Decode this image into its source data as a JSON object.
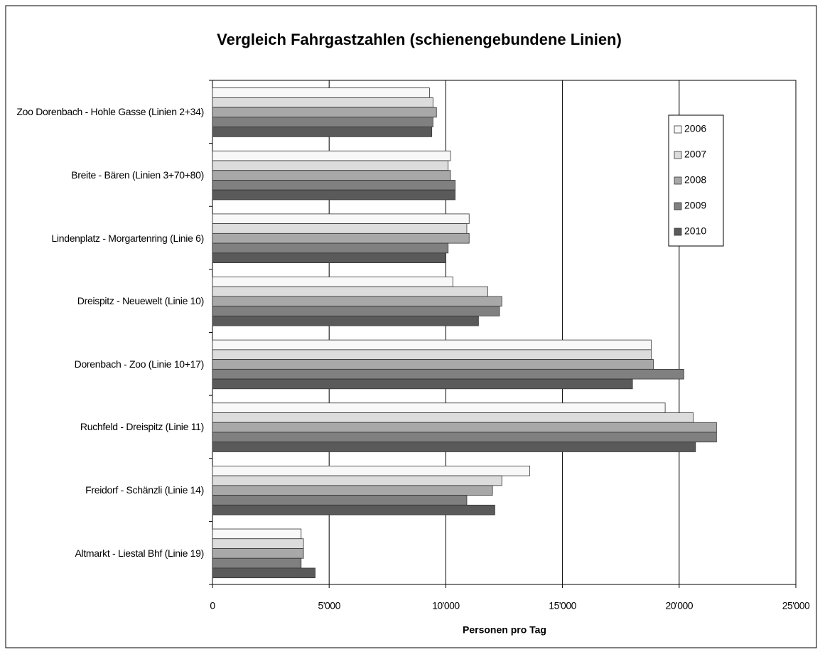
{
  "chart_data": {
    "type": "bar",
    "orientation": "horizontal",
    "title": "Vergleich Fahrgastzahlen (schienengebundene Linien)",
    "xlabel": "Personen pro Tag",
    "categories": [
      "Zoo Dorenbach - Hohle Gasse (Linien 2+34)",
      "Breite - Bären (Linien 3+70+80)",
      "Lindenplatz - Morgartenring (Linie 6)",
      "Dreispitz - Neuewelt (Linie 10)",
      "Dorenbach - Zoo (Linie 10+17)",
      "Ruchfeld - Dreispitz (Linie 11)",
      "Freidorf - Schänzli (Linie 14)",
      "Altmarkt - Liestal Bhf (Linie 19)"
    ],
    "series": [
      {
        "name": "2006",
        "color": "#f8f8f8",
        "values": [
          9300,
          10200,
          11000,
          10300,
          18800,
          19400,
          13600,
          3800
        ]
      },
      {
        "name": "2007",
        "color": "#dcdcdc",
        "values": [
          9450,
          10100,
          10900,
          11800,
          18800,
          20600,
          12400,
          3900
        ]
      },
      {
        "name": "2008",
        "color": "#a8a8a8",
        "values": [
          9600,
          10200,
          11000,
          12400,
          18900,
          21600,
          12000,
          3900
        ]
      },
      {
        "name": "2009",
        "color": "#808080",
        "values": [
          9450,
          10400,
          10100,
          12300,
          20200,
          21600,
          10900,
          3800
        ]
      },
      {
        "name": "2010",
        "color": "#5a5a5a",
        "values": [
          9400,
          10400,
          10000,
          11400,
          18000,
          20700,
          12100,
          4400
        ]
      }
    ],
    "xlim": [
      0,
      25000
    ],
    "xticks": [
      0,
      {
        "value": 5000,
        "label": "5'000"
      },
      {
        "value": 10000,
        "label": "10'000"
      },
      {
        "value": 15000,
        "label": "15'000"
      },
      {
        "value": 20000,
        "label": "20'000"
      },
      {
        "value": 25000,
        "label": "25'000"
      }
    ],
    "grid": true,
    "legend": "right"
  }
}
